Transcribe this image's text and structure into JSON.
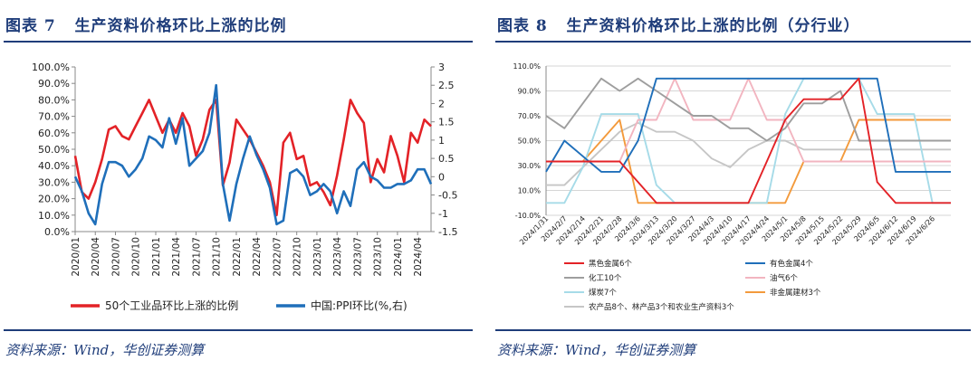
{
  "left": {
    "fig_label": "图表 7",
    "title": "生产资料价格环比上涨的比例",
    "source": "资料来源：Wind，华创证券测算",
    "colors": {
      "pct": "#e32227",
      "ppi": "#1f6fba"
    },
    "chart_data": {
      "type": "line",
      "x": [
        "2020/01",
        "2020/02",
        "2020/03",
        "2020/04",
        "2020/05",
        "2020/06",
        "2020/07",
        "2020/08",
        "2020/09",
        "2020/10",
        "2020/11",
        "2020/12",
        "2021/01",
        "2021/02",
        "2021/03",
        "2021/04",
        "2021/05",
        "2021/06",
        "2021/07",
        "2021/08",
        "2021/09",
        "2021/10",
        "2021/11",
        "2021/12",
        "2022/01",
        "2022/02",
        "2022/03",
        "2022/04",
        "2022/05",
        "2022/06",
        "2022/07",
        "2022/08",
        "2022/09",
        "2022/10",
        "2022/11",
        "2022/12",
        "2023/01",
        "2023/02",
        "2023/03",
        "2023/04",
        "2023/05",
        "2023/06",
        "2023/07",
        "2023/08",
        "2023/09",
        "2023/10",
        "2023/11",
        "2023/12",
        "2024/01",
        "2024/02",
        "2024/03",
        "2024/04",
        "2024/05",
        "2024/06"
      ],
      "xtick_labels": [
        "2020/01",
        "2020/04",
        "2020/07",
        "2020/10",
        "2021/01",
        "2021/04",
        "2021/07",
        "2021/10",
        "2022/01",
        "2022/04",
        "2022/07",
        "2022/10",
        "2023/01",
        "2023/04",
        "2023/07",
        "2023/10",
        "2024/01",
        "2024/04"
      ],
      "series": [
        {
          "name": "50个工业品环比上涨的比例",
          "axis": "left",
          "values": [
            46,
            24,
            20,
            30,
            44,
            62,
            64,
            58,
            56,
            64,
            72,
            80,
            70,
            60,
            68,
            60,
            72,
            64,
            46,
            56,
            74,
            80,
            28,
            42,
            68,
            62,
            56,
            48,
            40,
            30,
            10,
            54,
            60,
            44,
            46,
            28,
            30,
            24,
            16,
            34,
            56,
            80,
            72,
            66,
            30,
            44,
            36,
            58,
            46,
            30,
            60,
            54,
            68,
            64
          ]
        },
        {
          "name": "中国:PPI环比(%,右)",
          "axis": "right",
          "values": [
            0.0,
            -0.4,
            -1.0,
            -1.3,
            -0.2,
            0.4,
            0.4,
            0.3,
            0.0,
            0.2,
            0.5,
            1.1,
            1.0,
            0.8,
            1.6,
            0.9,
            1.6,
            0.3,
            0.5,
            0.7,
            1.2,
            2.5,
            -0.2,
            -1.2,
            -0.2,
            0.5,
            1.1,
            0.6,
            0.2,
            -0.3,
            -1.3,
            -1.2,
            0.1,
            0.2,
            0.0,
            -0.5,
            -0.4,
            -0.2,
            -0.4,
            -1.0,
            -0.4,
            -0.8,
            0.2,
            0.4,
            0.0,
            -0.1,
            -0.3,
            -0.3,
            -0.2,
            -0.2,
            -0.1,
            0.2,
            0.2,
            -0.2
          ]
        }
      ],
      "yleft": {
        "ticks": [
          "0.0%",
          "10.0%",
          "20.0%",
          "30.0%",
          "40.0%",
          "50.0%",
          "60.0%",
          "70.0%",
          "80.0%",
          "90.0%",
          "100.0%"
        ],
        "range": [
          0,
          100
        ]
      },
      "yright": {
        "ticks": [
          "-1.5",
          "-1",
          "-0.5",
          "0",
          "0.5",
          "1",
          "1.5",
          "2",
          "2.5",
          "3"
        ],
        "range": [
          -1.5,
          3
        ]
      },
      "grid": false,
      "legend": "bottom"
    }
  },
  "right": {
    "fig_label": "图表 8",
    "title": "生产资料价格环比上涨的比例（分行业）",
    "source": "资料来源：Wind，华创证券测算",
    "chart_data": {
      "type": "line",
      "x": [
        "2024/1/31",
        "2024/2/7",
        "2024/2/14",
        "2024/2/21",
        "2024/2/28",
        "2024/3/6",
        "2024/3/13",
        "2024/3/20",
        "2024/3/27",
        "2024/4/3",
        "2024/4/10",
        "2024/4/17",
        "2024/4/24",
        "2024/5/1",
        "2024/5/8",
        "2024/5/15",
        "2024/5/22",
        "2024/5/29",
        "2024/6/5",
        "2024/6/12",
        "2024/6/19",
        "2024/6/26",
        "2024/7/3"
      ],
      "xtick_labels": [
        "2024/1/31",
        "2024/2/7",
        "2024/2/14",
        "2024/2/21",
        "2024/2/28",
        "2024/3/6",
        "2024/3/13",
        "2024/3/20",
        "2024/3/27",
        "2024/4/3",
        "2024/4/10",
        "2024/4/17",
        "2024/4/24",
        "2024/5/1",
        "2024/5/8",
        "2024/5/15",
        "2024/5/22",
        "2024/5/29",
        "2024/6/5",
        "2024/6/12",
        "2024/6/19",
        "2024/6/26"
      ],
      "yticks": [
        "-10.0%",
        "10.0%",
        "30.0%",
        "50.0%",
        "70.0%",
        "90.0%",
        "110.0%"
      ],
      "ylim": [
        -10,
        110
      ],
      "grid": true,
      "legend": "bottom",
      "series": [
        {
          "name": "黑色金属6个",
          "color": "#e32227",
          "values": [
            33.3,
            33.3,
            33.3,
            33.3,
            33.3,
            16.7,
            0,
            0,
            0,
            0,
            0,
            0,
            33.3,
            66.7,
            83.3,
            83.3,
            83.3,
            100,
            16.7,
            0,
            0,
            0,
            0
          ]
        },
        {
          "name": "有色金属4个",
          "color": "#1f6fba",
          "values": [
            25,
            50,
            37.5,
            25,
            25,
            50,
            100,
            100,
            100,
            100,
            100,
            100,
            100,
            100,
            100,
            100,
            100,
            100,
            100,
            25,
            25,
            25,
            25
          ]
        },
        {
          "name": "化工10个",
          "color": "#9e9e9e",
          "values": [
            70,
            60,
            80,
            100,
            90,
            100,
            90,
            80,
            70,
            70,
            60,
            60,
            50,
            60,
            80,
            80,
            90,
            50,
            50,
            50,
            50,
            50,
            50
          ]
        },
        {
          "name": "油气6个",
          "color": "#f2b5c0",
          "values": [
            33.3,
            33.3,
            33.3,
            33.3,
            33.3,
            66.7,
            66.7,
            100,
            66.7,
            66.7,
            66.7,
            100,
            66.7,
            66.7,
            33.3,
            33.3,
            33.3,
            33.3,
            33.3,
            33.3,
            33.3,
            33.3,
            33.3
          ]
        },
        {
          "name": "煤炭7个",
          "color": "#a6dbe8",
          "values": [
            0,
            0,
            28.6,
            71.4,
            71.4,
            71.4,
            14.3,
            0,
            0,
            0,
            0,
            0,
            0,
            71.4,
            100,
            100,
            100,
            100,
            71.4,
            71.4,
            71.4,
            0,
            0
          ]
        },
        {
          "name": "非金属建材3个",
          "color": "#f39a3c",
          "values": [
            33.3,
            33.3,
            33.3,
            50,
            66.7,
            0,
            0,
            0,
            0,
            0,
            0,
            0,
            0,
            0,
            33.3,
            33.3,
            33.3,
            66.7,
            66.7,
            66.7,
            66.7,
            66.7,
            66.7
          ]
        },
        {
          "name": "农产品8个、林产品3个和农业生产资料3个",
          "color": "#c6c6c6",
          "values": [
            14.3,
            14.3,
            28.6,
            42.9,
            57.1,
            64.3,
            57.1,
            57.1,
            50,
            35.7,
            28.6,
            42.9,
            50,
            50,
            42.9,
            42.9,
            42.9,
            42.9,
            42.9,
            42.9,
            42.9,
            42.9,
            42.9
          ]
        }
      ]
    }
  }
}
